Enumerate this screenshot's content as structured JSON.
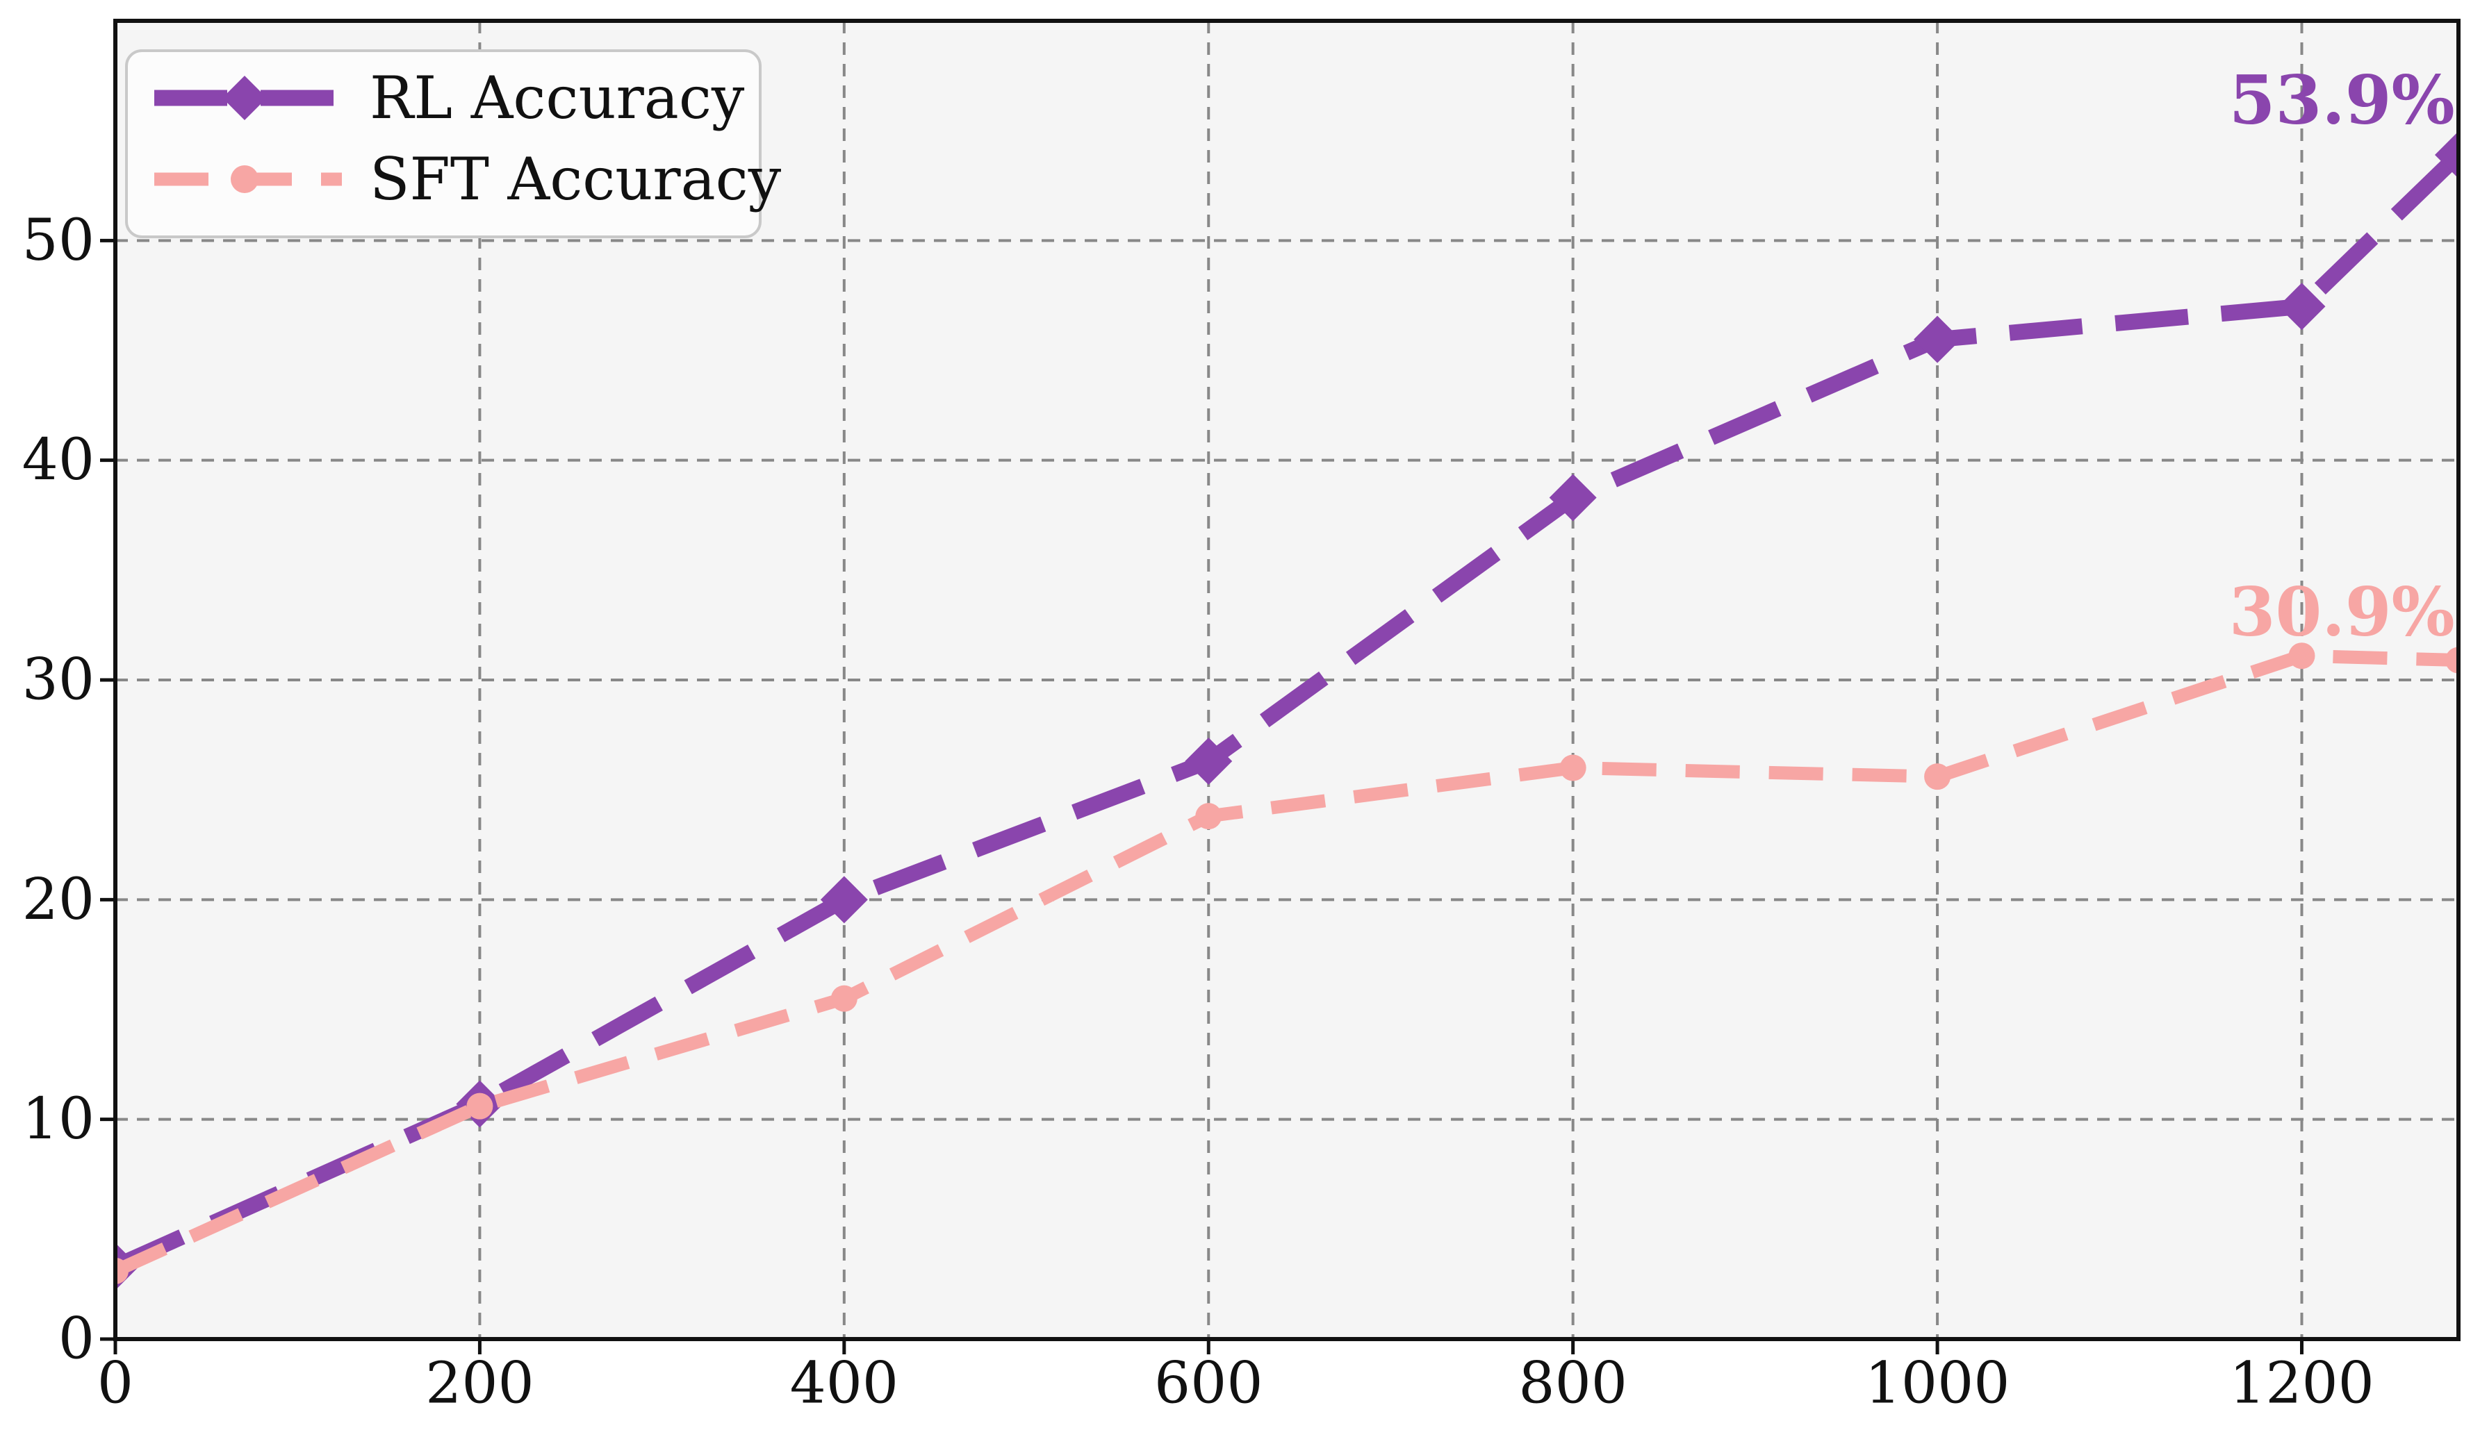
{
  "chart_data": {
    "type": "line",
    "title": "",
    "xlabel": "",
    "ylabel": "",
    "xlim": [
      0,
      1286
    ],
    "ylim": [
      0,
      60
    ],
    "xticks": [
      0,
      200,
      400,
      600,
      800,
      1000,
      1200
    ],
    "yticks": [
      0,
      10,
      20,
      30,
      40,
      50
    ],
    "grid": true,
    "grid_style": "dashed",
    "legend_position": "upper-left",
    "x": [
      0,
      200,
      400,
      600,
      800,
      1000,
      1200,
      1286
    ],
    "series": [
      {
        "name": "RL Accuracy",
        "color": "#8a45ad",
        "marker": "diamond",
        "linestyle": "dashed",
        "values": [
          3.3,
          10.7,
          20.0,
          26.3,
          38.3,
          45.5,
          47.0,
          53.9
        ]
      },
      {
        "name": "SFT Accuracy",
        "color": "#f7a6a4",
        "marker": "circle",
        "linestyle": "dashed",
        "values": [
          3.1,
          10.6,
          15.5,
          23.8,
          26.0,
          25.6,
          31.1,
          30.9
        ]
      }
    ],
    "annotations": [
      {
        "text": "53.9%",
        "x": 1284,
        "y": 56.4,
        "color": "#8a45ad"
      },
      {
        "text": "30.9%",
        "x": 1284,
        "y": 33.1,
        "color": "#f7a6a4"
      }
    ],
    "colors": {
      "plot_bg": "#f5f5f5",
      "figure_bg": "#ffffff",
      "grid": "#888888",
      "axis": "#111111",
      "tick_label": "#111111",
      "legend_bg": "#fcfcfc",
      "legend_border": "#c9c9c9"
    }
  }
}
